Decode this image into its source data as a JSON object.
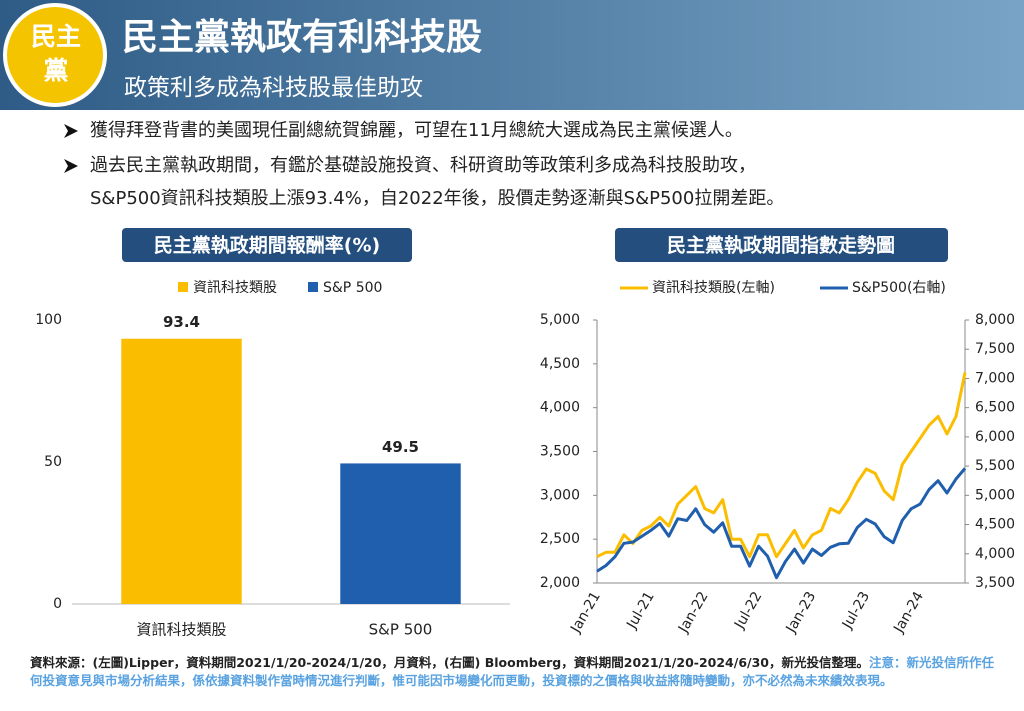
{
  "header": {
    "badge": "民主黨",
    "title": "民主黨執政有利科技股",
    "subtitle": "政策利多成為科技股最佳助攻"
  },
  "bullets": [
    "獲得拜登背書的美國現任副總統賀錦麗，可望在11月總統大選成為民主黨候選人。",
    "過去民主黨執政期間，有鑑於基礎設施投資、科研資助等政策利多成為科技股助攻，",
    "S&P500資訊科技類股上漲93.4%，自2022年後，股價走勢逐漸與S&P500拉開差距。"
  ],
  "chart_data": [
    {
      "type": "bar",
      "title": "民主黨執政期間報酬率(%)",
      "categories": [
        "資訊科技類股",
        "S&P 500"
      ],
      "values": [
        93.4,
        49.5
      ],
      "colors": [
        "#fbbd00",
        "#1f5fad"
      ],
      "ylim": [
        0,
        100
      ],
      "yticks": [
        0,
        50,
        100
      ],
      "legend": "top"
    },
    {
      "type": "line",
      "title": "民主黨執政期間指數走勢圖",
      "categories": [
        "Jan-21",
        null,
        null,
        null,
        null,
        null,
        "Jul-21",
        null,
        null,
        null,
        null,
        null,
        "Jan-22",
        null,
        null,
        null,
        null,
        null,
        "Jul-22",
        null,
        null,
        null,
        null,
        null,
        "Jan-23",
        null,
        null,
        null,
        null,
        null,
        "Jul-23",
        null,
        null,
        null,
        null,
        null,
        "Jan-24",
        null,
        null,
        null,
        null,
        null
      ],
      "series": [
        {
          "name": "資訊科技類股(左軸)",
          "color": "#fbbd00",
          "values": [
            2300,
            2350,
            2350,
            2550,
            2450,
            2600,
            2650,
            2750,
            2650,
            2900,
            3000,
            3100,
            2850,
            2800,
            2950,
            2500,
            2500,
            2300,
            2550,
            2550,
            2300,
            2450,
            2600,
            2400,
            2550,
            2600,
            2850,
            2800,
            2950,
            3150,
            3300,
            3250,
            3050,
            2950,
            3350,
            3500,
            3650,
            3800,
            3900,
            3700,
            3900,
            4400
          ]
        },
        {
          "name": "S&P500(右軸)",
          "color": "#1f5fad",
          "axis": "y2",
          "values": [
            3700,
            3800,
            3950,
            4180,
            4200,
            4300,
            4400,
            4520,
            4300,
            4600,
            4570,
            4770,
            4500,
            4370,
            4530,
            4130,
            4130,
            3790,
            4130,
            3960,
            3590,
            3870,
            4080,
            3840,
            4080,
            3970,
            4110,
            4170,
            4180,
            4450,
            4590,
            4510,
            4290,
            4190,
            4570,
            4770,
            4850,
            5100,
            5250,
            5040,
            5280,
            5460
          ]
        }
      ],
      "ylim": [
        2000,
        5000
      ],
      "yticks": [
        {
          "value": 2000,
          "label": "2,000"
        },
        {
          "value": 2500,
          "label": "2,500"
        },
        {
          "value": 3000,
          "label": "3,000"
        },
        {
          "value": 3500,
          "label": "3,500"
        },
        {
          "value": 4000,
          "label": "4,000"
        },
        {
          "value": 4500,
          "label": "4,500"
        },
        {
          "value": 5000,
          "label": "5,000"
        }
      ],
      "y2lim": [
        3500,
        8000
      ],
      "y2ticks": [
        {
          "value": 3500,
          "label": "3,500"
        },
        {
          "value": 4000,
          "label": "4,000"
        },
        {
          "value": 4500,
          "label": "4,500"
        },
        {
          "value": 5000,
          "label": "5,000"
        },
        {
          "value": 5500,
          "label": "5,500"
        },
        {
          "value": 6000,
          "label": "6,000"
        },
        {
          "value": 6500,
          "label": "6,500"
        },
        {
          "value": 7000,
          "label": "7,000"
        },
        {
          "value": 7500,
          "label": "7,500"
        },
        {
          "value": 8000,
          "label": "8,000"
        }
      ],
      "legend": "top"
    }
  ],
  "footer": {
    "source": "資料來源：(左圖)Lipper，資料期間2021/1/20-2024/1/20，月資料，(右圖) Bloomberg，資料期間2021/1/20-2024/6/30，新光投信整理。",
    "note": "注意：新光投信所作任何投資意見與市場分析結果，係依據資料製作當時情況進行判斷，惟可能因市場變化而更動，投資標的之價格與收益將隨時變動，亦不必然為未來績效表現。"
  }
}
